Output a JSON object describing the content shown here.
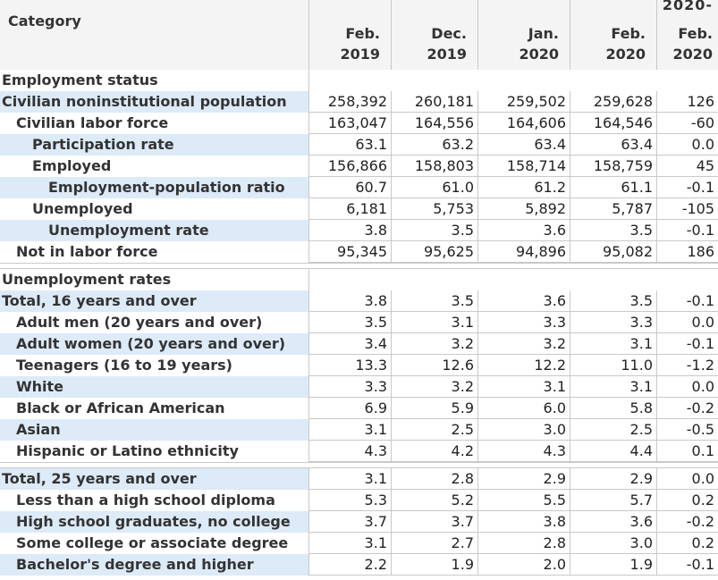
{
  "header": {
    "category": "Category",
    "columns": [
      {
        "label": "Feb.\n2019"
      },
      {
        "label": "Dec.\n2019"
      },
      {
        "label": "Jan.\n2020"
      },
      {
        "label": "Feb.\n2020"
      },
      {
        "top": "2020-",
        "label": "Feb.\n2020"
      }
    ]
  },
  "sections": [
    {
      "title": "Employment status",
      "rows": [
        {
          "label": "Civilian noninstitutional population",
          "level": 0,
          "hl": true,
          "values": [
            "258,392",
            "260,181",
            "259,502",
            "259,628",
            "126"
          ]
        },
        {
          "label": "Civilian labor force",
          "level": 1,
          "hl": false,
          "values": [
            "163,047",
            "164,556",
            "164,606",
            "164,546",
            "-60"
          ]
        },
        {
          "label": "Participation rate",
          "level": 2,
          "hl": true,
          "values": [
            "63.1",
            "63.2",
            "63.4",
            "63.4",
            "0.0"
          ]
        },
        {
          "label": "Employed",
          "level": 2,
          "hl": false,
          "values": [
            "156,866",
            "158,803",
            "158,714",
            "158,759",
            "45"
          ]
        },
        {
          "label": "Employment-population ratio",
          "level": 3,
          "hl": true,
          "values": [
            "60.7",
            "61.0",
            "61.2",
            "61.1",
            "-0.1"
          ]
        },
        {
          "label": "Unemployed",
          "level": 2,
          "hl": false,
          "values": [
            "6,181",
            "5,753",
            "5,892",
            "5,787",
            "-105"
          ]
        },
        {
          "label": "Unemployment rate",
          "level": 3,
          "hl": true,
          "values": [
            "3.8",
            "3.5",
            "3.6",
            "3.5",
            "-0.1"
          ]
        },
        {
          "label": "Not in labor force",
          "level": 1,
          "hl": false,
          "values": [
            "95,345",
            "95,625",
            "94,896",
            "95,082",
            "186"
          ]
        }
      ]
    },
    {
      "title": "Unemployment rates",
      "rows": [
        {
          "label": "Total, 16 years and over",
          "level": 0,
          "hl": true,
          "values": [
            "3.8",
            "3.5",
            "3.6",
            "3.5",
            "-0.1"
          ]
        },
        {
          "label": "Adult men (20 years and over)",
          "level": 1,
          "hl": false,
          "values": [
            "3.5",
            "3.1",
            "3.3",
            "3.3",
            "0.0"
          ]
        },
        {
          "label": "Adult women (20 years and over)",
          "level": 1,
          "hl": true,
          "values": [
            "3.4",
            "3.2",
            "3.2",
            "3.1",
            "-0.1"
          ]
        },
        {
          "label": "Teenagers (16 to 19 years)",
          "level": 1,
          "hl": false,
          "values": [
            "13.3",
            "12.6",
            "12.2",
            "11.0",
            "-1.2"
          ]
        },
        {
          "label": "White",
          "level": 1,
          "hl": true,
          "values": [
            "3.3",
            "3.2",
            "3.1",
            "3.1",
            "0.0"
          ]
        },
        {
          "label": "Black or African American",
          "level": 1,
          "hl": false,
          "values": [
            "6.9",
            "5.9",
            "6.0",
            "5.8",
            "-0.2"
          ]
        },
        {
          "label": "Asian",
          "level": 1,
          "hl": true,
          "values": [
            "3.1",
            "2.5",
            "3.0",
            "2.5",
            "-0.5"
          ]
        },
        {
          "label": "Hispanic or Latino ethnicity",
          "level": 1,
          "hl": false,
          "values": [
            "4.3",
            "4.2",
            "4.3",
            "4.4",
            "0.1"
          ]
        }
      ]
    },
    {
      "title": null,
      "rows": [
        {
          "label": "Total, 25 years and over",
          "level": 0,
          "hl": true,
          "values": [
            "3.1",
            "2.8",
            "2.9",
            "2.9",
            "0.0"
          ]
        },
        {
          "label": "Less than a high school diploma",
          "level": 1,
          "hl": false,
          "values": [
            "5.3",
            "5.2",
            "5.5",
            "5.7",
            "0.2"
          ]
        },
        {
          "label": "High school graduates, no college",
          "level": 1,
          "hl": true,
          "values": [
            "3.7",
            "3.7",
            "3.8",
            "3.6",
            "-0.2"
          ]
        },
        {
          "label": "Some college or associate degree",
          "level": 1,
          "hl": false,
          "values": [
            "3.1",
            "2.7",
            "2.8",
            "3.0",
            "0.2"
          ]
        },
        {
          "label": "Bachelor's degree and higher",
          "level": 1,
          "hl": true,
          "values": [
            "2.2",
            "1.9",
            "2.0",
            "1.9",
            "-0.1"
          ]
        }
      ]
    }
  ]
}
